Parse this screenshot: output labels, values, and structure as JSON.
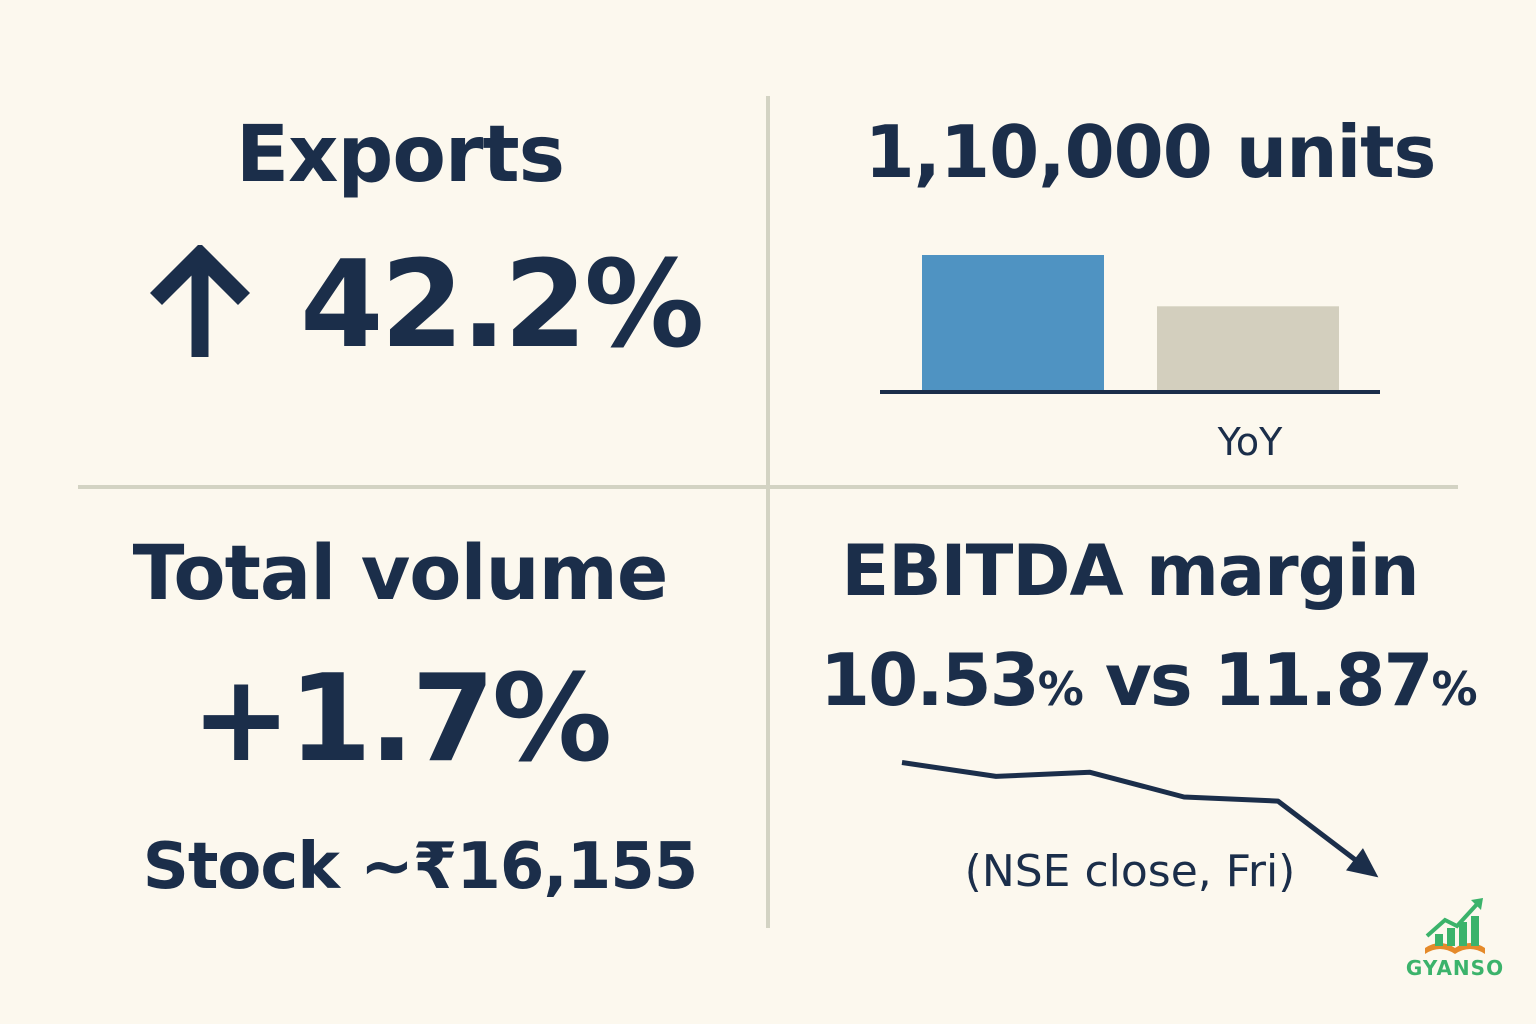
{
  "exports": {
    "title": "Exports",
    "arrow": "up-arrow-icon",
    "value": "42.2%"
  },
  "units": {
    "title": "1,10,000 units",
    "caption": "YoY"
  },
  "volume": {
    "title": "Total volume",
    "value": "+1.7%"
  },
  "stock": {
    "label": "Stock ~₹16,155"
  },
  "ebitda": {
    "title": "EBITDA margin",
    "current": "10.53",
    "current_unit": "%",
    "vs": "vs",
    "previous": "11.87",
    "previous_unit": "%",
    "caption": "(NSE close, Fri)"
  },
  "logo": {
    "text": "GYANSO",
    "icon": "growth-chart-book-icon"
  },
  "colors": {
    "ink": "#1b2e4a",
    "bar_current": "#4f93c2",
    "bar_previous": "#d3cfbe",
    "logo_green": "#3bb36b",
    "background": "#fcf8ee"
  },
  "chart_data": [
    {
      "type": "bar",
      "categories": [
        "",
        ""
      ],
      "values": [
        1.0,
        0.62
      ],
      "xlabel": "YoY",
      "title": "1,10,000 units"
    },
    {
      "type": "line",
      "x": [
        1,
        2,
        3,
        4,
        5,
        6
      ],
      "values": [
        11.87,
        11.7,
        11.75,
        11.45,
        11.4,
        10.53
      ],
      "title": "EBITDA margin"
    }
  ]
}
